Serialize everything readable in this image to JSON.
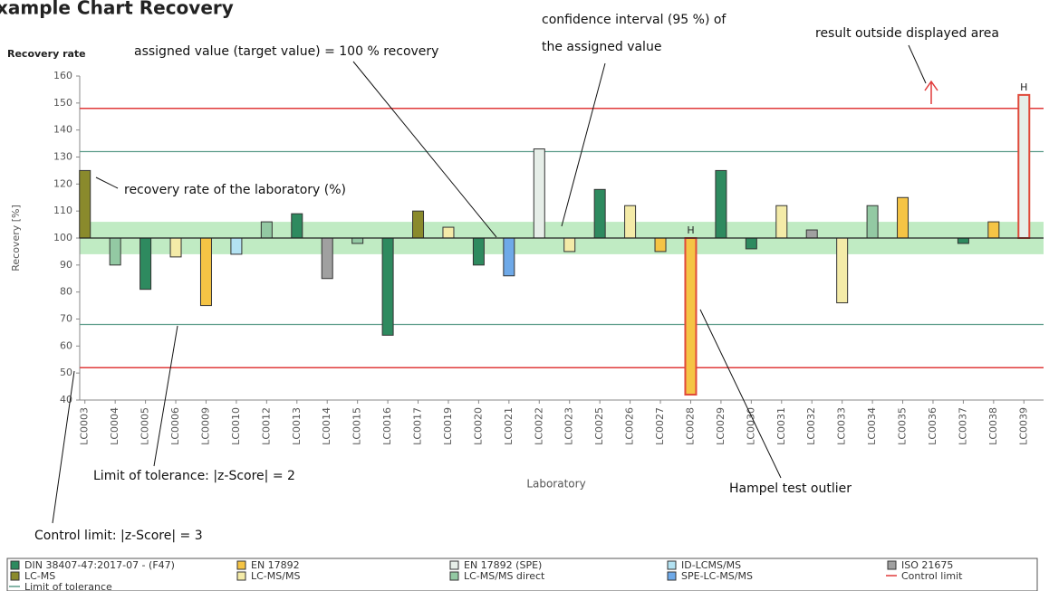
{
  "chart_data": {
    "type": "bar",
    "title": "xample Chart Recovery",
    "subtitle": "Recovery rate",
    "y_label": "Recovery [%]",
    "x_label": "Laboratory",
    "categories": [
      "LC0003",
      "LC0004",
      "LC0005",
      "LC0006",
      "LC0009",
      "LC0010",
      "LC0012",
      "LC0013",
      "LC0014",
      "LC0015",
      "LC0016",
      "LC0017",
      "LC0019",
      "LC0020",
      "LC0021",
      "LC0022",
      "LC0023",
      "LC0025",
      "LC0026",
      "LC0027",
      "LC0028",
      "LC0029",
      "LC0030",
      "LC0031",
      "LC0032",
      "LC0033",
      "LC0034",
      "LC0035",
      "LC0036",
      "LC0037",
      "LC0038",
      "LC0039"
    ],
    "series": [
      {
        "name": "DIN 38407-47:2017-07 - (F47)",
        "color": "#2e8a5f",
        "values": [
          null,
          null,
          81,
          null,
          null,
          null,
          null,
          109,
          null,
          null,
          64,
          null,
          null,
          90,
          null,
          null,
          null,
          118,
          null,
          null,
          null,
          125,
          96,
          null,
          null,
          null,
          null,
          null,
          null,
          98,
          null,
          null
        ]
      },
      {
        "name": "EN 17892",
        "color": "#f5c445",
        "values": [
          null,
          null,
          null,
          null,
          75,
          null,
          null,
          null,
          null,
          null,
          null,
          null,
          null,
          null,
          null,
          null,
          null,
          null,
          null,
          95,
          42,
          null,
          null,
          null,
          null,
          null,
          null,
          115,
          null,
          null,
          106,
          null
        ]
      },
      {
        "name": "EN 17892 (SPE)",
        "color": "#e6eee8",
        "values": [
          null,
          null,
          null,
          null,
          null,
          null,
          null,
          null,
          null,
          null,
          null,
          null,
          null,
          null,
          null,
          133,
          null,
          null,
          null,
          null,
          null,
          null,
          null,
          null,
          null,
          null,
          null,
          null,
          null,
          null,
          null,
          153
        ]
      },
      {
        "name": "ID-LCMS/MS",
        "color": "#b3e2f2",
        "values": [
          null,
          null,
          null,
          null,
          null,
          94,
          null,
          null,
          null,
          null,
          null,
          null,
          null,
          null,
          null,
          null,
          null,
          null,
          null,
          null,
          null,
          null,
          null,
          null,
          null,
          null,
          null,
          null,
          null,
          null,
          null,
          null
        ]
      },
      {
        "name": "ISO 21675",
        "color": "#a0a0a0",
        "values": [
          null,
          null,
          null,
          null,
          null,
          null,
          null,
          null,
          85,
          null,
          null,
          null,
          null,
          null,
          null,
          null,
          null,
          null,
          null,
          null,
          null,
          null,
          null,
          null,
          103,
          null,
          null,
          null,
          null,
          null,
          null,
          null
        ]
      },
      {
        "name": "LC-MS",
        "color": "#8a8a2c",
        "values": [
          125,
          null,
          null,
          null,
          null,
          null,
          null,
          null,
          null,
          null,
          null,
          110,
          null,
          null,
          null,
          null,
          null,
          null,
          null,
          null,
          null,
          null,
          null,
          null,
          null,
          null,
          null,
          null,
          null,
          null,
          null,
          null
        ]
      },
      {
        "name": "LC-MS/MS",
        "color": "#f4eba8",
        "values": [
          null,
          null,
          null,
          93,
          null,
          null,
          null,
          null,
          null,
          null,
          null,
          null,
          104,
          null,
          null,
          null,
          95,
          null,
          112,
          null,
          null,
          null,
          null,
          112,
          null,
          76,
          null,
          null,
          null,
          null,
          null,
          null
        ]
      },
      {
        "name": "LC-MS/MS direct",
        "color": "#93c9a3",
        "values": [
          null,
          90,
          null,
          null,
          null,
          null,
          106,
          null,
          null,
          98,
          null,
          null,
          null,
          null,
          null,
          null,
          null,
          null,
          null,
          null,
          null,
          null,
          null,
          null,
          null,
          null,
          112,
          null,
          null,
          null,
          null,
          null
        ]
      },
      {
        "name": "SPE-LC-MS/MS",
        "color": "#6ea9e8",
        "values": [
          null,
          null,
          null,
          null,
          null,
          null,
          null,
          null,
          null,
          null,
          null,
          null,
          null,
          null,
          86,
          null,
          null,
          null,
          null,
          null,
          null,
          null,
          null,
          null,
          null,
          null,
          null,
          null,
          null,
          null,
          null,
          null
        ]
      }
    ],
    "assigned_value": 100,
    "confidence_band": {
      "values": [
        94,
        106
      ],
      "color": "#b5e8b8"
    },
    "reference_lines": [
      {
        "name": "Control limit",
        "color": "#e03a3a",
        "values": [
          52,
          148
        ]
      },
      {
        "name": "Limit of tolerance",
        "color": "#5c9c8a",
        "values": [
          68,
          132
        ]
      }
    ],
    "outliers": [
      {
        "text": "H",
        "category": "LC0028"
      },
      {
        "text": "H",
        "category": "LC0039"
      }
    ],
    "outlier_color": "#e04a3a",
    "annotations": [
      "assigned value (target value) = 100 % recovery",
      "confidence interval (95 %) of",
      "the assigned value",
      "result outside displayed area",
      "recovery rate of the laboratory (%)",
      "Limit of tolerance: |z-Score| = 2",
      "Control limit: |z-Score| = 3",
      "Hampel test outlier"
    ],
    "ylim": [
      40,
      160
    ],
    "yticks": [
      40,
      50,
      60,
      70,
      80,
      90,
      100,
      110,
      120,
      130,
      140,
      150,
      160
    ]
  }
}
